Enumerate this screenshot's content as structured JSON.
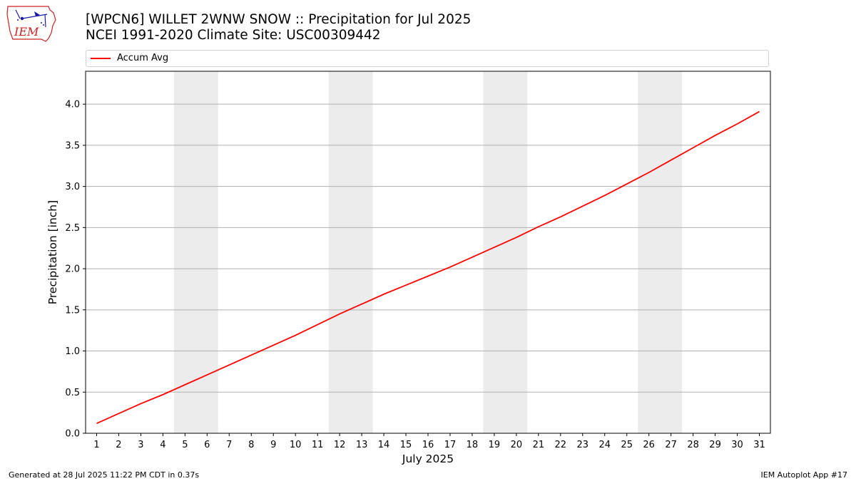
{
  "header": {
    "title_line1": "[WPCN6] WILLET 2WNW SNOW :: Precipitation for Jul 2025",
    "title_line2": "NCEI 1991-2020 Climate Site: USC00309442"
  },
  "logo": {
    "text": "IEM",
    "color": "#cc2222",
    "icon_color": "#1a1aa8"
  },
  "footer": {
    "generated": "Generated at 28 Jul 2025 11:22 PM CDT in 0.37s",
    "app": "IEM Autoplot App #17"
  },
  "chart_data": {
    "type": "line",
    "xlabel": "July 2025",
    "ylabel": "Precipitation [inch]",
    "xlim": [
      0.5,
      31.5
    ],
    "ylim": [
      0,
      4.4
    ],
    "yticks": [
      0.0,
      0.5,
      1.0,
      1.5,
      2.0,
      2.5,
      3.0,
      3.5,
      4.0
    ],
    "ytick_labels": [
      "0.0",
      "0.5",
      "1.0",
      "1.5",
      "2.0",
      "2.5",
      "3.0",
      "3.5",
      "4.0"
    ],
    "x": [
      1,
      2,
      3,
      4,
      5,
      6,
      7,
      8,
      9,
      10,
      11,
      12,
      13,
      14,
      15,
      16,
      17,
      18,
      19,
      20,
      21,
      22,
      23,
      24,
      25,
      26,
      27,
      28,
      29,
      30,
      31
    ],
    "xtick_labels": [
      "1",
      "2",
      "3",
      "4",
      "5",
      "6",
      "7",
      "8",
      "9",
      "10",
      "11",
      "12",
      "13",
      "14",
      "15",
      "16",
      "17",
      "18",
      "19",
      "20",
      "21",
      "22",
      "23",
      "24",
      "25",
      "26",
      "27",
      "28",
      "29",
      "30",
      "31"
    ],
    "grid": "horizontal",
    "legend_position": "top",
    "weekend_bands": [
      [
        4.5,
        6.5
      ],
      [
        11.5,
        13.5
      ],
      [
        18.5,
        20.5
      ],
      [
        25.5,
        27.5
      ]
    ],
    "weekend_color": "#ececec",
    "series": [
      {
        "name": "Accum Avg",
        "color": "#ff0000",
        "values": [
          0.12,
          0.24,
          0.36,
          0.47,
          0.59,
          0.71,
          0.83,
          0.95,
          1.07,
          1.19,
          1.32,
          1.45,
          1.57,
          1.69,
          1.8,
          1.91,
          2.02,
          2.14,
          2.26,
          2.38,
          2.51,
          2.63,
          2.76,
          2.89,
          3.03,
          3.17,
          3.32,
          3.47,
          3.62,
          3.76,
          3.91
        ]
      }
    ]
  }
}
